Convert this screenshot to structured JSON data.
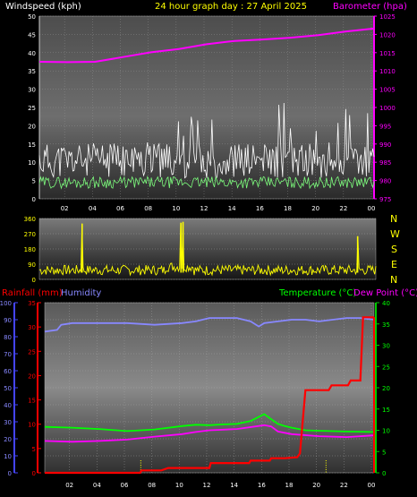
{
  "header": {
    "wind_label": "Windspeed (kph)",
    "title": "24 hour graph day : 27 April 2025",
    "baro_label": "Barometer (hpa)"
  },
  "direction_letters": [
    "N",
    "W",
    "S",
    "E",
    "N"
  ],
  "bottom_labels": {
    "rain": "Rainfall (mm)",
    "humidity": "Humidity",
    "temp": "Temperature (°C)",
    "dew": "Dew Point (°C)"
  },
  "colors": {
    "wind_gust": "#ffffff",
    "wind_avg": "#7CFC7C",
    "barometer": "#ff00ff",
    "direction": "#ffff00",
    "rain": "#ff0000",
    "humidity": "#8888ff",
    "temperature": "#00ff00",
    "dewpoint": "#ff00ff",
    "axis_red": "#ff0000",
    "axis_green": "#00cc00",
    "axis_blue": "#4444ff"
  },
  "chart_data": [
    {
      "type": "line",
      "name": "wind-baro",
      "x_ticks": [
        "02",
        "04",
        "06",
        "08",
        "10",
        "12",
        "14",
        "16",
        "18",
        "20",
        "22",
        "00"
      ],
      "y_left_ticks": [
        "0",
        "5",
        "10",
        "15",
        "20",
        "25",
        "30",
        "35",
        "40",
        "45",
        "50"
      ],
      "y_left_range": [
        0,
        50
      ],
      "y_right_ticks": [
        "975",
        "980",
        "985",
        "990",
        "995",
        "1000",
        "1005",
        "1010",
        "1015",
        "1020",
        "1025"
      ],
      "y_right_range": [
        975,
        1025
      ],
      "series": [
        {
          "name": "Windspeed (kph)",
          "axis": "left",
          "kind": "noise",
          "base": 9,
          "amp": 6,
          "seed": 11
        },
        {
          "name": "Windspeed (kph)",
          "axis": "left",
          "kind": "noise",
          "base": 4,
          "amp": 2,
          "seed": 29
        },
        {
          "name": "Barometer (hpa)",
          "axis": "right",
          "x": [
            0,
            2,
            4,
            6,
            8,
            10,
            12,
            14,
            16,
            18,
            20,
            22,
            24
          ],
          "y": [
            1012.5,
            1012.4,
            1012.5,
            1013.8,
            1015.1,
            1016.0,
            1017.3,
            1018.2,
            1018.6,
            1019.1,
            1019.8,
            1020.8,
            1021.6
          ]
        }
      ]
    },
    {
      "type": "line",
      "name": "wind-direction",
      "y_ticks": [
        "360",
        "270",
        "180",
        "90",
        "0"
      ],
      "y_range": [
        0,
        360
      ],
      "series": [
        {
          "name": "Direction",
          "kind": "noise",
          "base": 55,
          "amp": 30,
          "seed": 7,
          "spikes": [
            {
              "x": 3.05,
              "y": 330
            },
            {
              "x": 10.1,
              "y": 335
            },
            {
              "x": 10.25,
              "y": 340
            },
            {
              "x": 22.7,
              "y": 255
            }
          ]
        }
      ]
    },
    {
      "type": "line",
      "name": "rain-temp",
      "x_ticks": [
        "02",
        "04",
        "06",
        "08",
        "10",
        "12",
        "14",
        "16",
        "18",
        "20",
        "22",
        "00"
      ],
      "y_rain_ticks": [
        "0",
        "5",
        "10",
        "15",
        "20",
        "25",
        "30",
        "35"
      ],
      "y_rain_range": [
        0,
        35
      ],
      "y_hum_ticks": [
        "0",
        "10",
        "20",
        "30",
        "40",
        "50",
        "60",
        "70",
        "80",
        "90",
        "100"
      ],
      "y_hum_range": [
        0,
        100
      ],
      "y_temp_ticks": [
        "0",
        "5",
        "10",
        "15",
        "20",
        "25",
        "30",
        "35",
        "40"
      ],
      "y_temp_range": [
        0,
        40
      ],
      "series": [
        {
          "name": "Humidity",
          "axis": "hum",
          "x": [
            0,
            0.9,
            1.2,
            2,
            4,
            6,
            8,
            10,
            11,
            12,
            14,
            15,
            15.6,
            16,
            17,
            18,
            19,
            20,
            22,
            23,
            24
          ],
          "y": [
            83,
            84,
            87,
            88,
            88,
            88,
            87,
            88,
            89,
            91,
            91,
            89,
            86,
            88,
            89,
            90,
            90,
            89,
            91,
            91,
            90
          ]
        },
        {
          "name": "Temperature (°C)",
          "axis": "temp",
          "x": [
            0,
            2,
            4,
            6,
            8,
            10,
            11,
            12,
            13,
            14,
            15,
            15.5,
            16,
            16.5,
            17,
            17.5,
            18,
            19,
            20,
            22,
            24
          ],
          "y": [
            10.8,
            10.6,
            10.3,
            9.8,
            10.2,
            11.0,
            11.3,
            11.2,
            11.4,
            11.5,
            12.2,
            13.0,
            13.8,
            12.6,
            11.5,
            11.0,
            10.6,
            10.0,
            9.9,
            9.7,
            9.6
          ]
        },
        {
          "name": "Dew Point (°C)",
          "axis": "temp",
          "x": [
            0,
            2,
            4,
            6,
            8,
            10,
            11,
            12,
            14,
            16,
            16.5,
            17,
            18,
            20,
            22,
            24
          ],
          "y": [
            7.5,
            7.3,
            7.5,
            7.8,
            8.5,
            9.1,
            9.6,
            10.0,
            10.3,
            11.2,
            10.9,
            9.7,
            9.1,
            8.6,
            8.4,
            8.8
          ]
        },
        {
          "name": "Rainfall (mm)",
          "axis": "rain",
          "x": [
            0,
            6.95,
            7.05,
            8.5,
            9.0,
            10.5,
            11,
            12,
            12.1,
            14.9,
            15,
            16.4,
            16.5,
            17.5,
            18.4,
            18.6,
            19.0,
            20.7,
            20.9,
            22.1,
            22.3,
            23.0,
            23.2,
            24
          ],
          "y": [
            0,
            0,
            0.5,
            0.5,
            1,
            1,
            1,
            1,
            2,
            2,
            2.5,
            2.5,
            3,
            3,
            3.2,
            4,
            17,
            17,
            18,
            18,
            19,
            19,
            32,
            32
          ]
        }
      ],
      "markers_x": [
        7.0,
        20.5
      ]
    }
  ]
}
